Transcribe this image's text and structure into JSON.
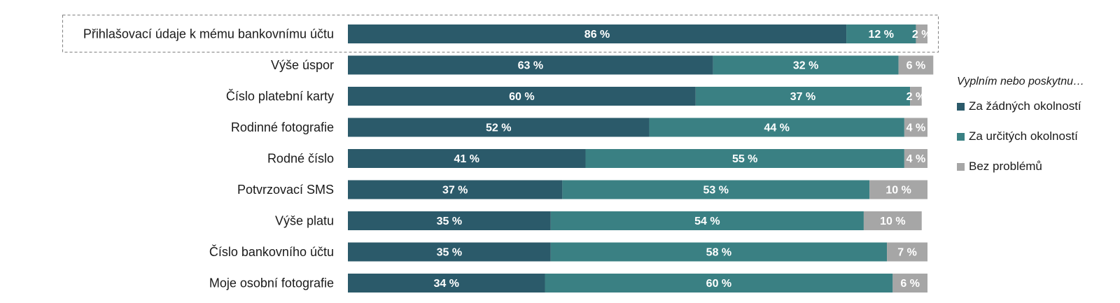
{
  "chart_data": {
    "type": "bar",
    "orientation": "horizontal",
    "stacked": true,
    "categories": [
      "Přihlašovací údaje k mému bankovnímu účtu",
      "Výše úspor",
      "Číslo platební karty",
      "Rodinné fotografie",
      "Rodné číslo",
      "Potvrzovací SMS",
      "Výše platu",
      "Číslo bankovního účtu",
      "Moje osobní fotografie"
    ],
    "series": [
      {
        "name": "Za žádných okolností",
        "color": "#2b5a6a",
        "values": [
          86,
          63,
          60,
          52,
          41,
          37,
          35,
          35,
          34
        ]
      },
      {
        "name": "Za určitých okolností",
        "color": "#3a8083",
        "values": [
          12,
          32,
          37,
          44,
          55,
          53,
          54,
          58,
          60
        ]
      },
      {
        "name": "Bez problémů",
        "color": "#a6a6a6",
        "values": [
          2,
          6,
          2,
          4,
          4,
          10,
          10,
          7,
          6
        ]
      }
    ],
    "value_suffix": " %",
    "legend_title": "Vyplním nebo poskytnu…",
    "legend_position": "right",
    "highlighted_category": "Přihlašovací údaje k mému bankovnímu účtu",
    "xlim": [
      0,
      100
    ],
    "grid": false
  }
}
